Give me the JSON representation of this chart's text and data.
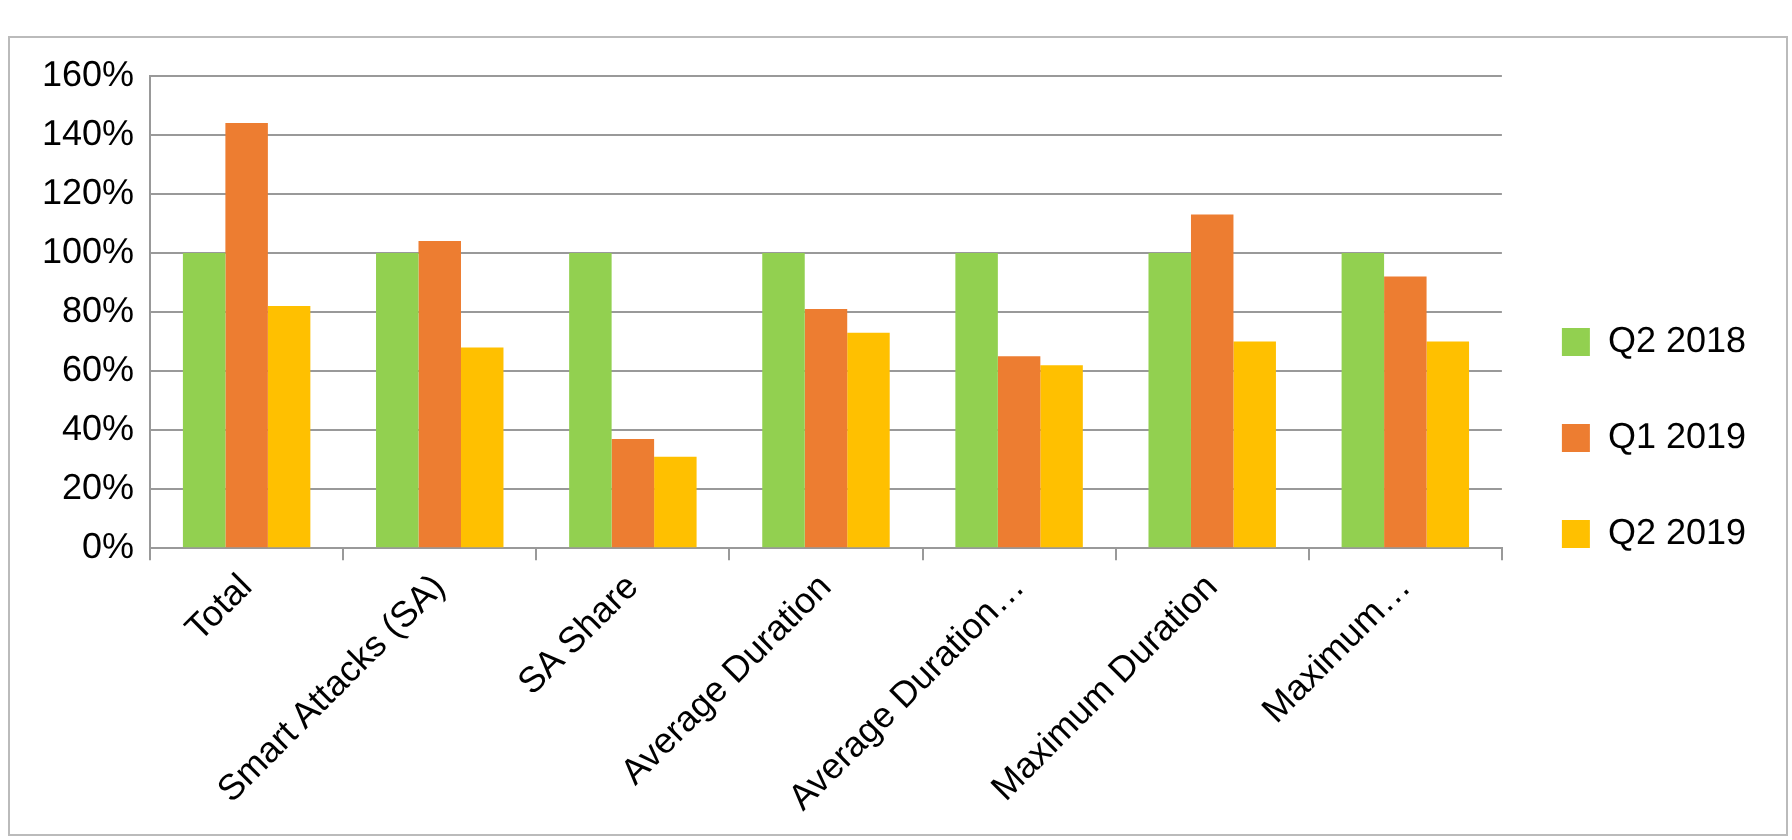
{
  "chart_data": {
    "type": "bar",
    "categories": [
      "Total",
      "Smart Attacks (SA)",
      "SA Share",
      "Average Duration",
      "Average Duration…",
      "Maximum Duration",
      "Maximum…"
    ],
    "series": [
      {
        "name": "Q2 2018",
        "color": "#92d050",
        "values": [
          100,
          100,
          100,
          100,
          100,
          100,
          100
        ]
      },
      {
        "name": "Q1 2019",
        "color": "#ed7d31",
        "values": [
          144,
          104,
          37,
          81,
          65,
          113,
          92
        ]
      },
      {
        "name": "Q2 2019",
        "color": "#ffc000",
        "values": [
          82,
          68,
          31,
          73,
          62,
          70,
          70
        ]
      }
    ],
    "ylim": [
      0,
      160
    ],
    "yticks": [
      {
        "value": 0,
        "label": "0%"
      },
      {
        "value": 20,
        "label": "20%"
      },
      {
        "value": 40,
        "label": "40%"
      },
      {
        "value": 60,
        "label": "60%"
      },
      {
        "value": 80,
        "label": "80%"
      },
      {
        "value": 100,
        "label": "100%"
      },
      {
        "value": 120,
        "label": "120%"
      },
      {
        "value": 140,
        "label": "140%"
      },
      {
        "value": 160,
        "label": "160%"
      }
    ],
    "grid": "y",
    "legend": "right"
  }
}
